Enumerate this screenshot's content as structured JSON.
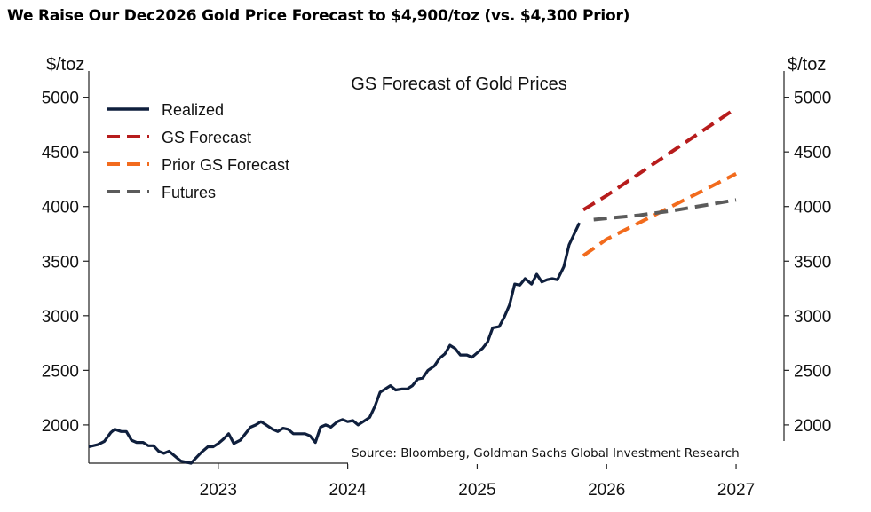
{
  "headline": "We Raise Our Dec2026 Gold Price Forecast to $4,900/toz (vs. $4,300 Prior)",
  "chart_data": {
    "type": "line",
    "title": "GS Forecast of Gold Prices",
    "ylabel_left": "$/toz",
    "ylabel_right": "$/toz",
    "ylim": [
      1650,
      5200
    ],
    "xlim": [
      2022.0,
      2027.37
    ],
    "yticks": [
      2000,
      2500,
      3000,
      3500,
      4000,
      4500,
      5000
    ],
    "xticks": [
      {
        "value": 2023,
        "label": "2023"
      },
      {
        "value": 2024,
        "label": "2024"
      },
      {
        "value": 2025,
        "label": "2025"
      },
      {
        "value": 2026,
        "label": "2026"
      },
      {
        "value": 2027,
        "label": "2027"
      }
    ],
    "source": "Source: Bloomberg, Goldman Sachs Global Investment Research",
    "series": [
      {
        "name": "Realized",
        "color": "#0f1f3d",
        "style": "solid",
        "x": [
          2022.0,
          2022.07,
          2022.12,
          2022.17,
          2022.2,
          2022.25,
          2022.29,
          2022.33,
          2022.37,
          2022.42,
          2022.46,
          2022.5,
          2022.54,
          2022.58,
          2022.62,
          2022.67,
          2022.71,
          2022.75,
          2022.79,
          2022.83,
          2022.87,
          2022.92,
          2022.96,
          2023.0,
          2023.04,
          2023.08,
          2023.12,
          2023.17,
          2023.21,
          2023.25,
          2023.29,
          2023.33,
          2023.37,
          2023.42,
          2023.46,
          2023.5,
          2023.54,
          2023.58,
          2023.62,
          2023.67,
          2023.71,
          2023.75,
          2023.79,
          2023.83,
          2023.87,
          2023.92,
          2023.96,
          2024.0,
          2024.04,
          2024.08,
          2024.12,
          2024.17,
          2024.21,
          2024.25,
          2024.29,
          2024.33,
          2024.37,
          2024.42,
          2024.46,
          2024.5,
          2024.54,
          2024.58,
          2024.62,
          2024.67,
          2024.71,
          2024.75,
          2024.79,
          2024.83,
          2024.87,
          2024.92,
          2024.96,
          2025.0,
          2025.04,
          2025.08,
          2025.12,
          2025.17,
          2025.21,
          2025.25,
          2025.29,
          2025.33,
          2025.37,
          2025.42,
          2025.46,
          2025.5,
          2025.54,
          2025.58,
          2025.62,
          2025.67,
          2025.71,
          2025.75,
          2025.79
        ],
        "y": [
          1800,
          1820,
          1850,
          1930,
          1960,
          1940,
          1940,
          1860,
          1840,
          1840,
          1810,
          1810,
          1760,
          1740,
          1760,
          1710,
          1670,
          1660,
          1650,
          1700,
          1750,
          1800,
          1800,
          1830,
          1870,
          1920,
          1830,
          1860,
          1920,
          1980,
          2000,
          2030,
          2000,
          1960,
          1940,
          1970,
          1960,
          1920,
          1920,
          1920,
          1900,
          1840,
          1980,
          2000,
          1980,
          2030,
          2050,
          2030,
          2040,
          2000,
          2030,
          2070,
          2170,
          2300,
          2330,
          2360,
          2320,
          2330,
          2330,
          2360,
          2420,
          2430,
          2500,
          2540,
          2610,
          2650,
          2730,
          2700,
          2640,
          2640,
          2620,
          2660,
          2700,
          2760,
          2890,
          2900,
          2990,
          3100,
          3290,
          3280,
          3340,
          3290,
          3380,
          3310,
          3330,
          3340,
          3330,
          3450,
          3650,
          3750,
          3850
        ]
      },
      {
        "name": "GS Forecast",
        "color": "#b71c1c",
        "style": "dashed",
        "x": [
          2025.82,
          2026.0,
          2026.25,
          2026.5,
          2026.75,
          2027.0
        ],
        "y": [
          3970,
          4100,
          4300,
          4500,
          4700,
          4900
        ]
      },
      {
        "name": "Prior GS Forecast",
        "color": "#f26b1d",
        "style": "dashed",
        "x": [
          2025.82,
          2026.0,
          2026.25,
          2026.5,
          2026.75,
          2027.0
        ],
        "y": [
          3550,
          3700,
          3850,
          4000,
          4150,
          4300
        ]
      },
      {
        "name": "Futures",
        "color": "#5b5b5b",
        "style": "dashed",
        "x": [
          2025.9,
          2026.25,
          2026.5,
          2026.75,
          2027.0
        ],
        "y": [
          3880,
          3920,
          3960,
          4010,
          4060
        ]
      }
    ]
  }
}
